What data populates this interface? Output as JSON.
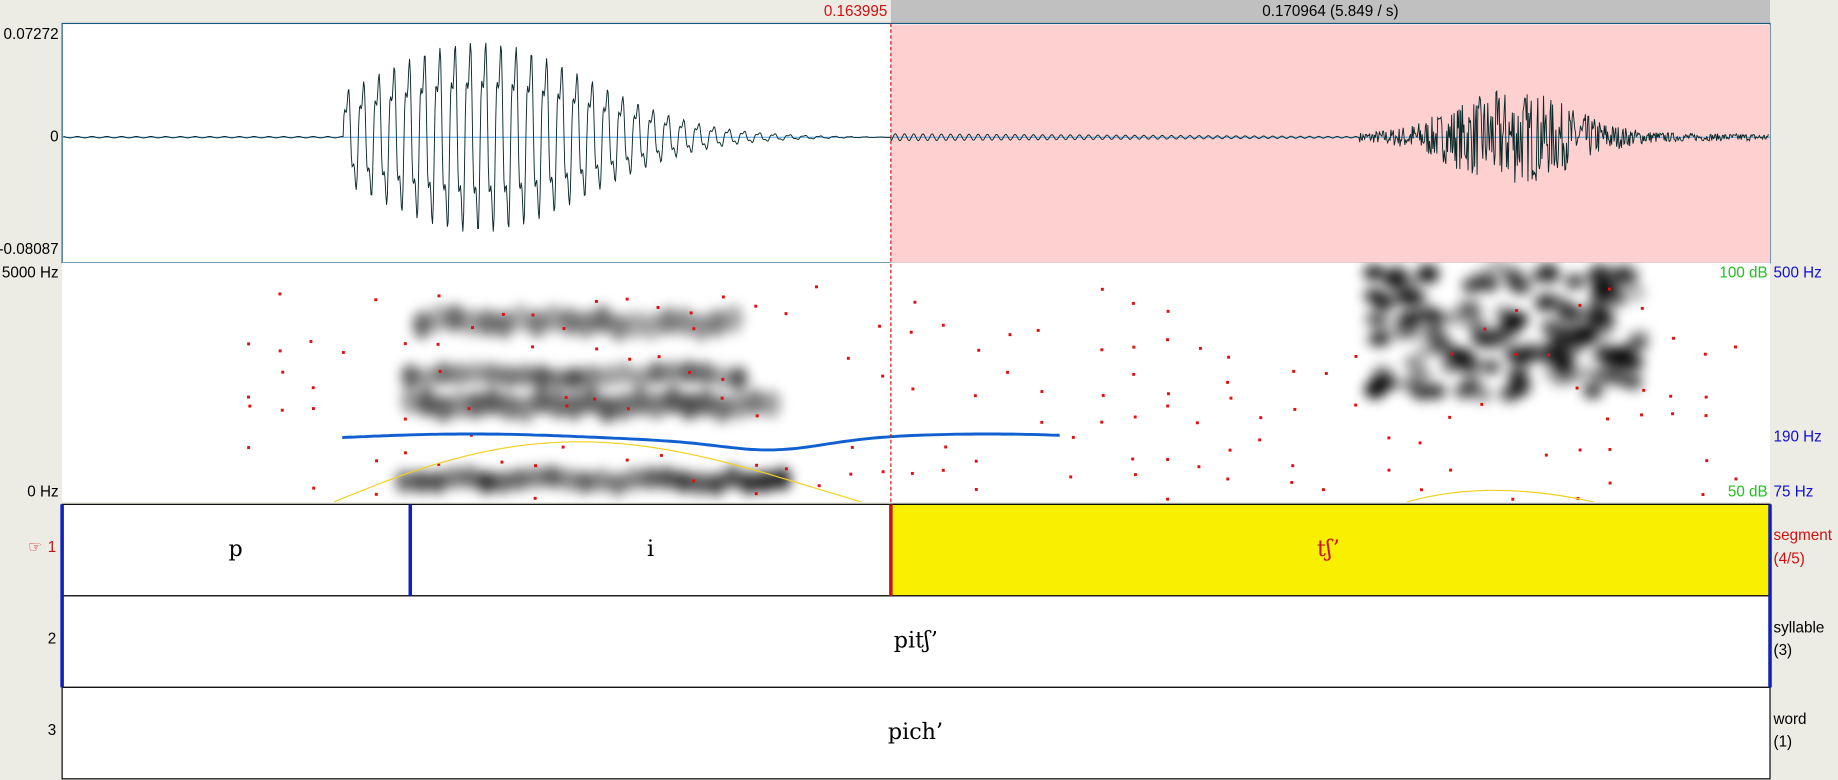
{
  "selection": {
    "start": "0.163995",
    "duration": "0.170964 (5.849 / s)"
  },
  "waveform": {
    "max": "0.07272",
    "zero": "0",
    "min": "-0.08087"
  },
  "spectrogram": {
    "top": "5000 Hz",
    "bottom": "0 Hz",
    "intensity_top": "100 dB",
    "intensity_bottom": "50 dB",
    "pitch_top": "500 Hz",
    "pitch_mid": "190 Hz",
    "pitch_bottom": "75 Hz"
  },
  "tiers": [
    {
      "number": "1",
      "name": "segment",
      "count": "(4/5)",
      "intervals": [
        "p",
        "i",
        "tʃʼ"
      ]
    },
    {
      "number": "2",
      "name": "syllable",
      "count": "(3)",
      "intervals": [
        "pitʃʼ"
      ]
    },
    {
      "number": "3",
      "name": "word",
      "count": "(1)",
      "intervals": [
        "pich’"
      ]
    }
  ]
}
